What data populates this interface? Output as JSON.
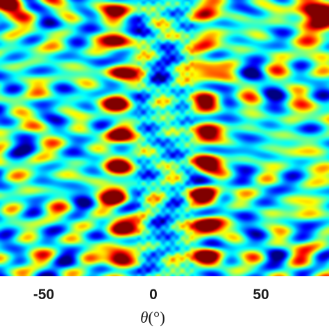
{
  "chart_data": {
    "type": "heatmap",
    "xlabel": "θ(°)",
    "xlabel_symbol": "θ",
    "xlabel_unit": "(°)",
    "xlim": [
      -80,
      80
    ],
    "x_ticks": [
      -50,
      0,
      50
    ],
    "x_tick_labels": [
      "-50",
      "0",
      "50"
    ],
    "colormap": "jet",
    "colors": {
      "low": "#00008f",
      "mid": "#7dff7a",
      "high": "#800000"
    },
    "main_lobes_theta": [
      -23,
      20
    ],
    "main_lobe_rows": 9,
    "grid": false,
    "legend": "none"
  }
}
